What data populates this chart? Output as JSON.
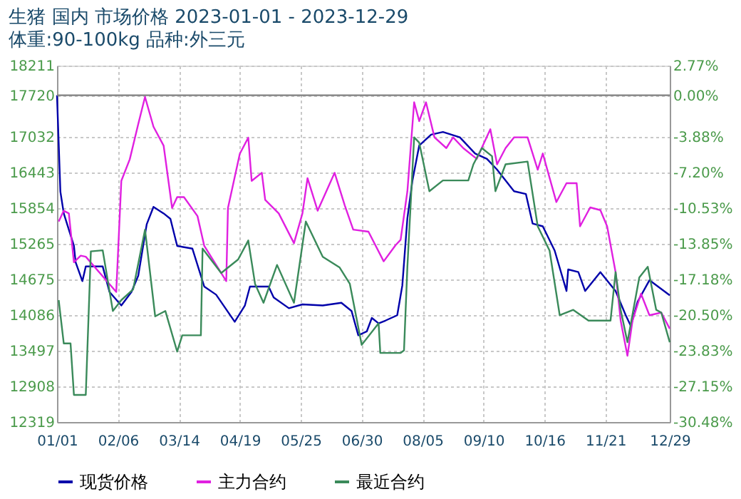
{
  "chart_data": {
    "type": "line",
    "title": "生猪 国内 市场价格 2023-01-01 - 2023-12-29",
    "subtitle": "体重:90-100kg 品种:外三元",
    "xlim": [
      "2023-01-01",
      "2023-12-29"
    ],
    "xticks": [
      {
        "value": "2023-01-01",
        "label": "01/01"
      },
      {
        "value": "2023-02-06",
        "label": "02/06"
      },
      {
        "value": "2023-03-14",
        "label": "03/14"
      },
      {
        "value": "2023-04-19",
        "label": "04/19"
      },
      {
        "value": "2023-05-25",
        "label": "05/25"
      },
      {
        "value": "2023-06-30",
        "label": "06/30"
      },
      {
        "value": "2023-08-05",
        "label": "08/05"
      },
      {
        "value": "2023-09-10",
        "label": "09/10"
      },
      {
        "value": "2023-10-16",
        "label": "10/16"
      },
      {
        "value": "2023-11-21",
        "label": "11/21"
      },
      {
        "value": "2023-12-29",
        "label": "12/29"
      }
    ],
    "ylim": [
      12319,
      18211
    ],
    "yticks": [
      12319,
      12908,
      13497,
      14086,
      14675,
      15265,
      15854,
      16443,
      17032,
      17720,
      18211
    ],
    "y2lim": [
      -30.48,
      2.77
    ],
    "y2ticks": [
      {
        "value": -30.48,
        "label": "-30.48%"
      },
      {
        "value": -27.15,
        "label": "-27.15%"
      },
      {
        "value": -23.83,
        "label": "-23.83%"
      },
      {
        "value": -20.5,
        "label": "-20.50%"
      },
      {
        "value": -17.18,
        "label": "-17.18%"
      },
      {
        "value": -13.85,
        "label": "-13.85%"
      },
      {
        "value": -10.53,
        "label": "-10.53%"
      },
      {
        "value": -7.2,
        "label": "-7.20%"
      },
      {
        "value": -3.88,
        "label": "-3.88%"
      },
      {
        "value": 0,
        "label": "0.00%"
      },
      {
        "value": 2.77,
        "label": "2.77%"
      }
    ],
    "grid": true,
    "legend": "bottom",
    "line_style": "solid",
    "marker": "none",
    "ref_lines": [
      {
        "axis": "y",
        "value": 17720,
        "color": "#808080"
      }
    ],
    "series": [
      {
        "name": "现货价格",
        "color": "#0000aa",
        "x": [
          "2023-01-01",
          "2023-01-03",
          "2023-01-05",
          "2023-01-11",
          "2023-01-12",
          "2023-01-16",
          "2023-01-18",
          "2023-01-28",
          "2023-02-01",
          "2023-02-08",
          "2023-02-14",
          "2023-02-18",
          "2023-02-23",
          "2023-02-27",
          "2023-03-05",
          "2023-03-09",
          "2023-03-13",
          "2023-03-22",
          "2023-03-29",
          "2023-04-05",
          "2023-04-16",
          "2023-04-22",
          "2023-04-25",
          "2023-05-06",
          "2023-05-09",
          "2023-05-18",
          "2023-05-26",
          "2023-06-07",
          "2023-06-18",
          "2023-06-24",
          "2023-06-28",
          "2023-07-03",
          "2023-07-06",
          "2023-07-10",
          "2023-07-14",
          "2023-07-21",
          "2023-07-24",
          "2023-07-27",
          "2023-07-30",
          "2023-08-03",
          "2023-08-10",
          "2023-08-17",
          "2023-08-27",
          "2023-09-05",
          "2023-09-12",
          "2023-09-18",
          "2023-09-28",
          "2023-10-05",
          "2023-10-09",
          "2023-10-15",
          "2023-10-22",
          "2023-10-29",
          "2023-10-30",
          "2023-11-05",
          "2023-11-09",
          "2023-11-18",
          "2023-11-27",
          "2023-12-03",
          "2023-12-06",
          "2023-12-10",
          "2023-12-17",
          "2023-12-29"
        ],
        "values": [
          17720,
          16126,
          15767,
          15230,
          14961,
          14648,
          14890,
          14890,
          14469,
          14245,
          14469,
          14738,
          15588,
          15875,
          15767,
          15678,
          15230,
          15185,
          14558,
          14424,
          13976,
          14245,
          14558,
          14558,
          14379,
          14200,
          14263,
          14245,
          14290,
          14155,
          13752,
          13816,
          14039,
          13950,
          13995,
          14084,
          14574,
          15688,
          16312,
          16891,
          17070,
          17114,
          17025,
          16758,
          16669,
          16490,
          16134,
          16089,
          15599,
          15554,
          15153,
          14485,
          14841,
          14797,
          14485,
          14797,
          14485,
          14084,
          13906,
          14307,
          14663,
          14413
        ]
      },
      {
        "name": "主力合约",
        "color": "#e020e0",
        "x": [
          "2023-01-02",
          "2023-01-05",
          "2023-01-08",
          "2023-01-11",
          "2023-01-15",
          "2023-01-18",
          "2023-02-05",
          "2023-02-08",
          "2023-02-13",
          "2023-02-18",
          "2023-02-22",
          "2023-02-27",
          "2023-03-05",
          "2023-03-10",
          "2023-03-13",
          "2023-03-17",
          "2023-03-25",
          "2023-03-29",
          "2023-04-11",
          "2023-04-12",
          "2023-04-19",
          "2023-04-24",
          "2023-04-26",
          "2023-05-02",
          "2023-05-04",
          "2023-05-12",
          "2023-05-21",
          "2023-05-26",
          "2023-05-29",
          "2023-06-04",
          "2023-06-14",
          "2023-06-20",
          "2023-06-25",
          "2023-07-04",
          "2023-07-13",
          "2023-07-20",
          "2023-07-23",
          "2023-07-27",
          "2023-07-31",
          "2023-08-03",
          "2023-08-07",
          "2023-08-12",
          "2023-08-19",
          "2023-08-23",
          "2023-08-29",
          "2023-09-06",
          "2023-09-14",
          "2023-09-18",
          "2023-09-23",
          "2023-09-28",
          "2023-10-06",
          "2023-10-12",
          "2023-10-15",
          "2023-10-23",
          "2023-10-29",
          "2023-11-04",
          "2023-11-06",
          "2023-11-12",
          "2023-11-18",
          "2023-11-22",
          "2023-11-27",
          "2023-11-30",
          "2023-12-04",
          "2023-12-07",
          "2023-12-12",
          "2023-12-17",
          "2023-12-24",
          "2023-12-29"
        ],
        "values": [
          15633,
          15812,
          15767,
          14961,
          15069,
          15051,
          14469,
          16305,
          16663,
          17245,
          17693,
          17200,
          16887,
          15857,
          16036,
          16036,
          15723,
          15230,
          14648,
          15857,
          16753,
          17021,
          16305,
          16439,
          15991,
          15767,
          15275,
          15767,
          16350,
          15812,
          16439,
          15901,
          15499,
          15465,
          14975,
          15242,
          15332,
          16134,
          17604,
          17293,
          17604,
          17025,
          16847,
          17025,
          16847,
          16669,
          17159,
          16579,
          16847,
          17025,
          17025,
          16490,
          16758,
          15955,
          16267,
          16267,
          15554,
          15866,
          15822,
          15554,
          14797,
          13995,
          13415,
          13995,
          14440,
          14084,
          14128,
          13861
        ]
      },
      {
        "name": "最近合约",
        "color": "#3a8a5a",
        "x": [
          "2023-01-02",
          "2023-01-05",
          "2023-01-09",
          "2023-01-11",
          "2023-01-18",
          "2023-01-21",
          "2023-01-28",
          "2023-02-03",
          "2023-02-08",
          "2023-02-15",
          "2023-02-22",
          "2023-02-28",
          "2023-03-06",
          "2023-03-13",
          "2023-03-16",
          "2023-03-27",
          "2023-03-28",
          "2023-04-08",
          "2023-04-18",
          "2023-04-24",
          "2023-04-28",
          "2023-05-03",
          "2023-05-11",
          "2023-05-21",
          "2023-05-28",
          "2023-06-07",
          "2023-06-17",
          "2023-06-23",
          "2023-06-30",
          "2023-07-10",
          "2023-07-11",
          "2023-07-23",
          "2023-07-25",
          "2023-07-27",
          "2023-07-31",
          "2023-08-03",
          "2023-08-09",
          "2023-08-17",
          "2023-09-01",
          "2023-09-04",
          "2023-09-09",
          "2023-09-15",
          "2023-09-17",
          "2023-09-23",
          "2023-10-06",
          "2023-10-12",
          "2023-10-19",
          "2023-10-25",
          "2023-11-02",
          "2023-11-11",
          "2023-11-24",
          "2023-11-27",
          "2023-11-30",
          "2023-12-04",
          "2023-12-11",
          "2023-12-16",
          "2023-12-21",
          "2023-12-24",
          "2023-12-29"
        ],
        "values": [
          14334,
          13618,
          13618,
          12767,
          12767,
          15140,
          15158,
          14155,
          14334,
          14513,
          15499,
          14066,
          14155,
          13483,
          13752,
          13752,
          15185,
          14782,
          15006,
          15320,
          14603,
          14290,
          14916,
          14290,
          15633,
          15051,
          14872,
          14603,
          13594,
          13950,
          13460,
          13460,
          13504,
          14886,
          17025,
          16936,
          16134,
          16312,
          16312,
          16579,
          16847,
          16713,
          16134,
          16579,
          16624,
          15554,
          15153,
          14084,
          14173,
          13995,
          13995,
          14797,
          14173,
          13638,
          14708,
          14886,
          14173,
          14128,
          13638
        ]
      }
    ]
  }
}
